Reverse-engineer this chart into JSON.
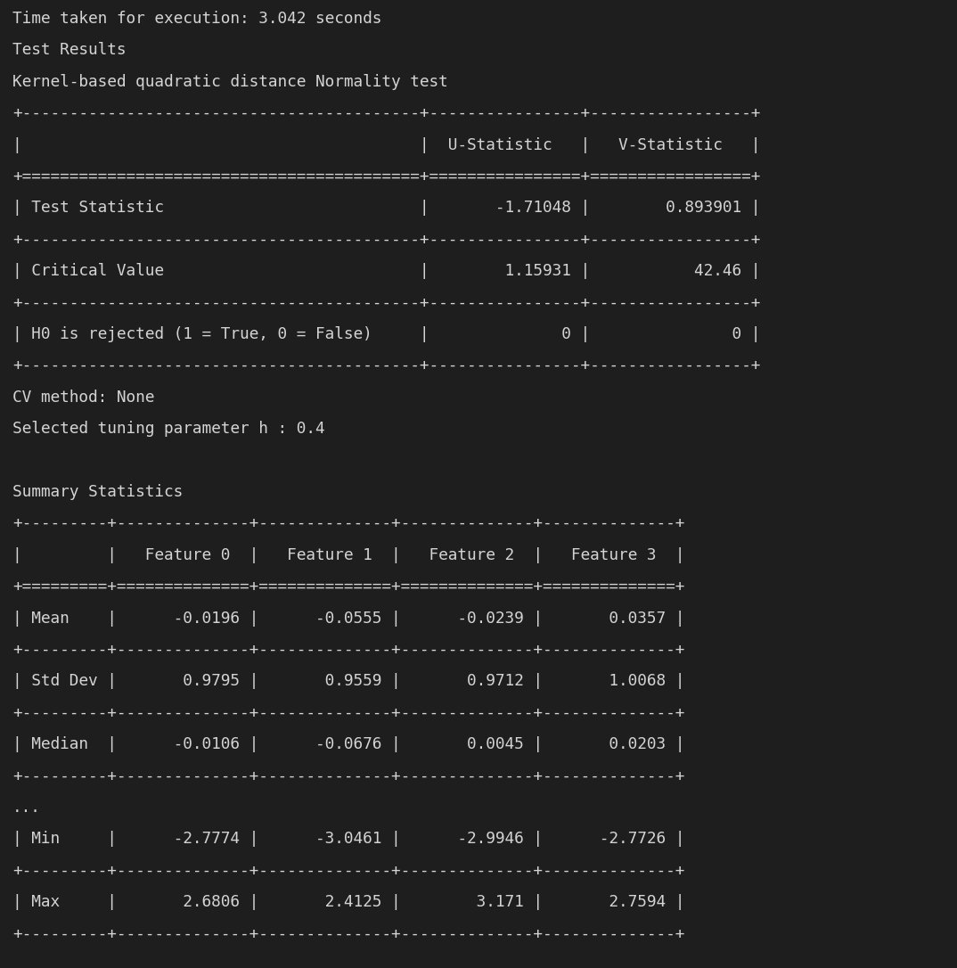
{
  "bg_color": "#1e1e1e",
  "text_color": "#d4d4d4",
  "font_size": 12.8,
  "fig_width": 10.74,
  "fig_height": 10.86,
  "dpi": 100,
  "lines": [
    "Time taken for execution: 3.042 seconds",
    "Test Results",
    "Kernel-based quadratic distance Normality test",
    "+------------------------------------------+----------------+-----------------+",
    "|                                          |  U-Statistic   |   V-Statistic   |",
    "+==========================================+================+=================+",
    "| Test Statistic                           |       -1.71048 |        0.893901 |",
    "+------------------------------------------+----------------+-----------------+",
    "| Critical Value                           |        1.15931 |           42.46 |",
    "+------------------------------------------+----------------+-----------------+",
    "| H0 is rejected (1 = True, 0 = False)     |              0 |               0 |",
    "+------------------------------------------+----------------+-----------------+",
    "CV method: None",
    "Selected tuning parameter h : 0.4",
    "",
    "Summary Statistics",
    "+---------+--------------+--------------+--------------+--------------+",
    "|         |   Feature 0  |   Feature 1  |   Feature 2  |   Feature 3  |",
    "+=========+==============+==============+==============+==============+",
    "| Mean    |      -0.0196 |      -0.0555 |      -0.0239 |       0.0357 |",
    "+---------+--------------+--------------+--------------+--------------+",
    "| Std Dev |       0.9795 |       0.9559 |       0.9712 |       1.0068 |",
    "+---------+--------------+--------------+--------------+--------------+",
    "| Median  |      -0.0106 |      -0.0676 |       0.0045 |       0.0203 |",
    "+---------+--------------+--------------+--------------+--------------+",
    "...",
    "| Min     |      -2.7774 |      -3.0461 |      -2.9946 |      -2.7726 |",
    "+---------+--------------+--------------+--------------+--------------+",
    "| Max     |       2.6806 |       2.4125 |        3.171 |       2.7594 |",
    "+---------+--------------+--------------+--------------+--------------+"
  ]
}
